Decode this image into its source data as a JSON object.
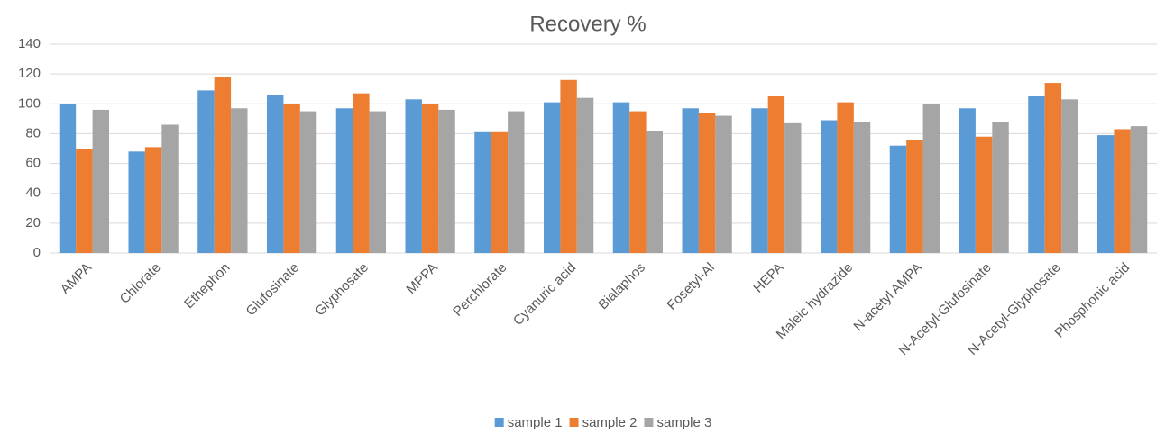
{
  "chart_data": {
    "type": "bar",
    "title": "Recovery %",
    "categories": [
      "AMPA",
      "Chlorate",
      "Ethephon",
      "Glufosinate",
      "Glyphosate",
      "MPPA",
      "Perchlorate",
      "Cyanuric acid",
      "Bialaphos",
      "Fosetyl-Al",
      "HEPA",
      "Maleic hydrazide",
      "N-acetyl AMPA",
      "N-Acetyl-Glufosinate",
      "N-Acetyl-Glyphosate",
      "Phosphonic acid"
    ],
    "series": [
      {
        "name": "sample 1",
        "color": "#5b9bd5",
        "values": [
          100,
          68,
          109,
          106,
          97,
          103,
          81,
          101,
          101,
          97,
          97,
          89,
          72,
          97,
          105,
          79
        ]
      },
      {
        "name": "sample 2",
        "color": "#ed7d31",
        "values": [
          70,
          71,
          118,
          100,
          107,
          100,
          81,
          116,
          95,
          94,
          105,
          101,
          76,
          78,
          114,
          83
        ]
      },
      {
        "name": "sample 3",
        "color": "#a5a5a5",
        "values": [
          96,
          86,
          97,
          95,
          95,
          96,
          95,
          104,
          82,
          92,
          87,
          88,
          100,
          88,
          103,
          85
        ]
      }
    ],
    "ylim": [
      0,
      140
    ],
    "yticks": [
      0,
      20,
      40,
      60,
      80,
      100,
      120,
      140
    ],
    "grid": true,
    "legend": "bottom"
  }
}
